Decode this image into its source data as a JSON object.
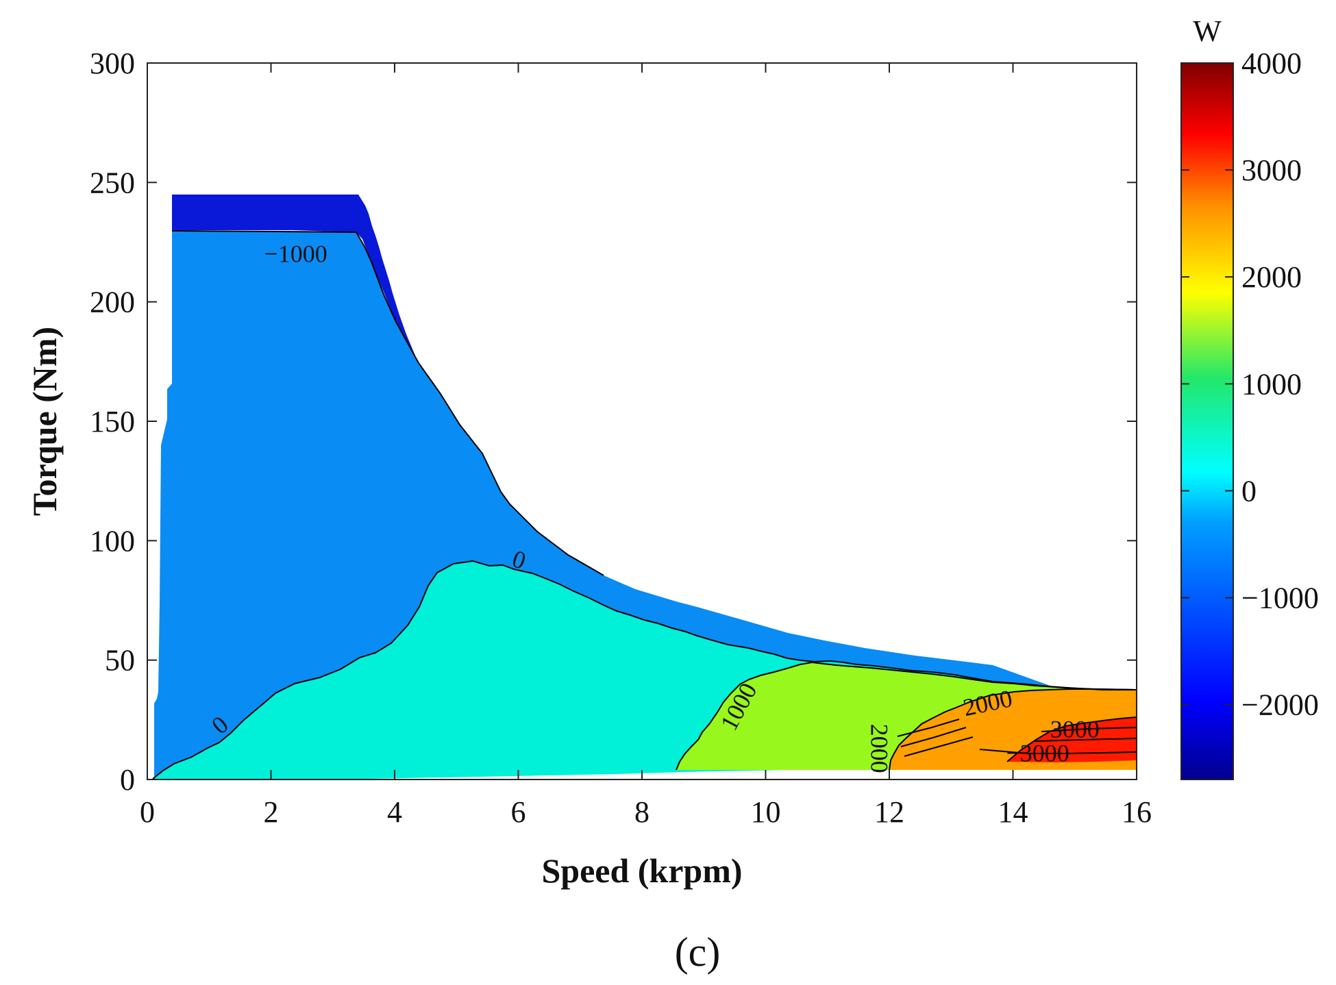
{
  "chart_data": {
    "type": "heatmap",
    "subtype": "filled-contour efficiency-style map",
    "xlabel": "Speed (krpm)",
    "ylabel": "Torque (Nm)",
    "xlim": [
      0,
      16
    ],
    "ylim": [
      0,
      300
    ],
    "x_ticks": [
      "0",
      "2",
      "4",
      "6",
      "8",
      "10",
      "12",
      "14",
      "16"
    ],
    "y_ticks": [
      "0",
      "50",
      "100",
      "150",
      "200",
      "250",
      "300"
    ],
    "colorbar": {
      "unit": "W",
      "range": [
        -2700,
        4000
      ],
      "ticks": [
        "4000",
        "3000",
        "2000",
        "1000",
        "0",
        "−1000",
        "−2000"
      ],
      "colormap": "jet"
    },
    "panel_label": "(c)",
    "regions": [
      {
        "level": "-2000 to -1000",
        "color": "#0a18d8"
      },
      {
        "level": "-1000 to 0",
        "color": "#0a8cf5"
      },
      {
        "level": "0 to 1000",
        "color": "#00f0d8"
      },
      {
        "level": "1000 to 2000",
        "color": "#98f71c"
      },
      {
        "level": "2000 to 3000",
        "color": "#ff9f00"
      },
      {
        "level": "3000 to 4000",
        "color": "#ff1a00"
      }
    ],
    "envelope": {
      "speed": [
        0.4,
        3.5,
        3.7,
        4.0,
        4.5,
        5.0,
        5.5,
        6.0,
        7.0,
        8.0,
        9.0,
        10.0,
        11.0,
        12.0,
        13.0,
        14.0,
        15.0,
        16.0
      ],
      "torque": [
        242,
        242,
        228,
        200,
        170,
        145,
        125,
        110,
        92,
        76,
        67,
        59,
        54,
        50,
        46,
        43,
        40,
        37
      ]
    },
    "contours": [
      {
        "level": "−1000",
        "points": [
          [
            0.4,
            220
          ],
          [
            3.5,
            219
          ],
          [
            4.0,
            198
          ],
          [
            4.5,
            165
          ],
          [
            5.0,
            142
          ],
          [
            5.5,
            124
          ]
        ]
      },
      {
        "level": "0",
        "points": [
          [
            0.1,
            2
          ],
          [
            0.8,
            12
          ],
          [
            1.5,
            25
          ],
          [
            2.1,
            40
          ],
          [
            3.2,
            50
          ],
          [
            4.4,
            66
          ],
          [
            4.8,
            82
          ],
          [
            5.5,
            90
          ],
          [
            6.5,
            88
          ],
          [
            8.0,
            76
          ],
          [
            10.0,
            60
          ],
          [
            12.0,
            50
          ],
          [
            13.5,
            45
          ],
          [
            15.0,
            40
          ],
          [
            16.0,
            37
          ]
        ]
      },
      {
        "level": "1000",
        "points": [
          [
            8.6,
            4
          ],
          [
            9.2,
            25
          ],
          [
            9.8,
            40
          ],
          [
            10.5,
            46
          ],
          [
            11.2,
            48
          ],
          [
            12.2,
            45
          ],
          [
            13.5,
            41
          ],
          [
            15.0,
            38
          ],
          [
            16.0,
            37
          ]
        ]
      },
      {
        "level": "2000",
        "points": [
          [
            11.7,
            6
          ],
          [
            12.2,
            15
          ],
          [
            12.6,
            22
          ],
          [
            13.3,
            28
          ],
          [
            14.0,
            33
          ],
          [
            15.0,
            35
          ],
          [
            16.0,
            36
          ]
        ]
      },
      {
        "level": "3000",
        "points": [
          [
            13.5,
            13
          ],
          [
            14.5,
            18
          ],
          [
            15.3,
            24
          ],
          [
            16.0,
            27
          ]
        ]
      }
    ],
    "contour_labels": [
      {
        "text": "−1000",
        "speed": 2.4,
        "torque": 219,
        "angle": 0
      },
      {
        "text": "0",
        "speed": 6.0,
        "torque": 91,
        "angle": 18
      },
      {
        "text": "0",
        "speed": 1.2,
        "torque": 22,
        "angle": -40
      },
      {
        "text": "1000",
        "speed": 9.6,
        "torque": 30,
        "angle": -62
      },
      {
        "text": "2000",
        "speed": 13.6,
        "torque": 31,
        "angle": -12
      },
      {
        "text": "2000",
        "speed": 11.8,
        "torque": 13,
        "angle": 90
      },
      {
        "text": "3000",
        "speed": 15.0,
        "torque": 20,
        "angle": 0
      },
      {
        "text": "−3000",
        "speed": 14.4,
        "torque": 10,
        "angle": 0
      }
    ]
  }
}
